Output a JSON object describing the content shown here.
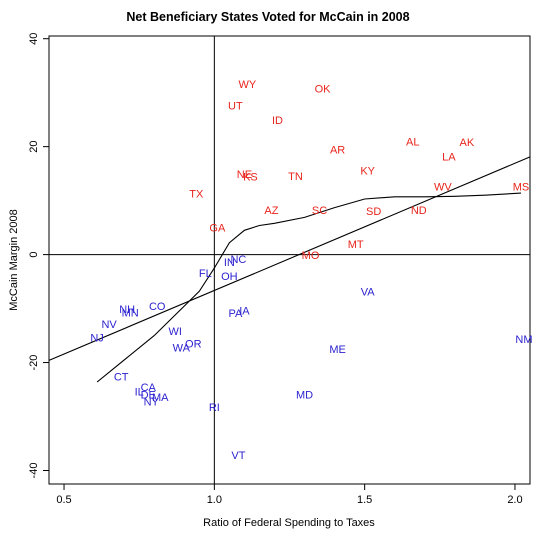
{
  "chart_data": {
    "type": "scatter",
    "title": "Net Beneficiary States Voted for McCain in 2008",
    "xlabel": "Ratio of Federal Spending to Taxes",
    "ylabel": "McCain Margin 2008",
    "xlim": [
      0.45,
      2.05
    ],
    "ylim": [
      -42.5,
      40.5
    ],
    "x_ticks": [
      0.5,
      1.0,
      1.5,
      2.0
    ],
    "x_tick_labels": [
      "0.5",
      "1.0",
      "1.5",
      "2.0"
    ],
    "y_ticks": [
      -40,
      -20,
      0,
      20,
      40
    ],
    "y_tick_labels": [
      "-40",
      "-20",
      "0",
      "20",
      "40"
    ],
    "grid": false,
    "reference_lines": {
      "x": 1.0,
      "y": 0
    },
    "colors": {
      "mccain": "#e8251c",
      "obama": "#2a1fcf"
    },
    "points": [
      {
        "label": "WY",
        "x": 1.11,
        "y": 31.6,
        "winner": "mccain"
      },
      {
        "label": "OK",
        "x": 1.36,
        "y": 30.8,
        "winner": "mccain"
      },
      {
        "label": "UT",
        "x": 1.07,
        "y": 27.6,
        "winner": "mccain"
      },
      {
        "label": "ID",
        "x": 1.21,
        "y": 24.9,
        "winner": "mccain"
      },
      {
        "label": "AL",
        "x": 1.66,
        "y": 21.0,
        "winner": "mccain"
      },
      {
        "label": "AK",
        "x": 1.84,
        "y": 20.9,
        "winner": "mccain"
      },
      {
        "label": "AR",
        "x": 1.41,
        "y": 19.5,
        "winner": "mccain"
      },
      {
        "label": "LA",
        "x": 1.78,
        "y": 18.2,
        "winner": "mccain"
      },
      {
        "label": "KY",
        "x": 1.51,
        "y": 15.6,
        "winner": "mccain"
      },
      {
        "label": "NE",
        "x": 1.1,
        "y": 14.9,
        "winner": "mccain"
      },
      {
        "label": "KS",
        "x": 1.12,
        "y": 14.5,
        "winner": "mccain"
      },
      {
        "label": "TN",
        "x": 1.27,
        "y": 14.6,
        "winner": "mccain"
      },
      {
        "label": "WV",
        "x": 1.76,
        "y": 12.6,
        "winner": "mccain"
      },
      {
        "label": "MS",
        "x": 2.02,
        "y": 12.6,
        "winner": "mccain"
      },
      {
        "label": "TX",
        "x": 0.94,
        "y": 11.3,
        "winner": "mccain"
      },
      {
        "label": "AZ",
        "x": 1.19,
        "y": 8.3,
        "winner": "mccain"
      },
      {
        "label": "SC",
        "x": 1.35,
        "y": 8.3,
        "winner": "mccain"
      },
      {
        "label": "SD",
        "x": 1.53,
        "y": 8.1,
        "winner": "mccain"
      },
      {
        "label": "ND",
        "x": 1.68,
        "y": 8.3,
        "winner": "mccain"
      },
      {
        "label": "GA",
        "x": 1.01,
        "y": 5.0,
        "winner": "mccain"
      },
      {
        "label": "MT",
        "x": 1.47,
        "y": 2.0,
        "winner": "mccain"
      },
      {
        "label": "MO",
        "x": 1.32,
        "y": -0.1,
        "winner": "mccain"
      },
      {
        "label": "IN",
        "x": 1.05,
        "y": -1.4,
        "winner": "obama"
      },
      {
        "label": "NC",
        "x": 1.08,
        "y": -0.8,
        "winner": "obama"
      },
      {
        "label": "FL",
        "x": 0.97,
        "y": -3.4,
        "winner": "obama"
      },
      {
        "label": "OH",
        "x": 1.05,
        "y": -4.0,
        "winner": "obama"
      },
      {
        "label": "VA",
        "x": 1.51,
        "y": -6.8,
        "winner": "obama"
      },
      {
        "label": "CO",
        "x": 0.81,
        "y": -9.5,
        "winner": "obama"
      },
      {
        "label": "NH",
        "x": 0.71,
        "y": -10.1,
        "winner": "obama"
      },
      {
        "label": "MN",
        "x": 0.72,
        "y": -10.7,
        "winner": "obama"
      },
      {
        "label": "IA",
        "x": 1.1,
        "y": -10.4,
        "winner": "obama"
      },
      {
        "label": "PA",
        "x": 1.07,
        "y": -10.8,
        "winner": "obama"
      },
      {
        "label": "NV",
        "x": 0.65,
        "y": -12.9,
        "winner": "obama"
      },
      {
        "label": "NJ",
        "x": 0.61,
        "y": -15.4,
        "winner": "obama"
      },
      {
        "label": "WI",
        "x": 0.87,
        "y": -14.2,
        "winner": "obama"
      },
      {
        "label": "OR",
        "x": 0.93,
        "y": -16.5,
        "winner": "obama"
      },
      {
        "label": "WA",
        "x": 0.89,
        "y": -17.2,
        "winner": "obama"
      },
      {
        "label": "NM",
        "x": 2.03,
        "y": -15.6,
        "winner": "obama"
      },
      {
        "label": "ME",
        "x": 1.41,
        "y": -17.5,
        "winner": "obama"
      },
      {
        "label": "CT",
        "x": 0.69,
        "y": -22.6,
        "winner": "obama"
      },
      {
        "label": "CA",
        "x": 0.78,
        "y": -24.5,
        "winner": "obama"
      },
      {
        "label": "DE",
        "x": 0.78,
        "y": -25.9,
        "winner": "obama"
      },
      {
        "label": "IL",
        "x": 0.75,
        "y": -25.4,
        "winner": "obama"
      },
      {
        "label": "MA",
        "x": 0.82,
        "y": -26.4,
        "winner": "obama"
      },
      {
        "label": "NY",
        "x": 0.79,
        "y": -27.2,
        "winner": "obama"
      },
      {
        "label": "RI",
        "x": 1.0,
        "y": -28.2,
        "winner": "obama"
      },
      {
        "label": "MD",
        "x": 1.3,
        "y": -25.9,
        "winner": "obama"
      },
      {
        "label": "VT",
        "x": 1.08,
        "y": -37.1,
        "winner": "obama"
      }
    ],
    "lines": [
      {
        "kind": "linear-fit",
        "x": [
          0.45,
          2.05
        ],
        "y": [
          -19.6,
          18.1
        ]
      },
      {
        "kind": "loess",
        "x": [
          0.61,
          0.8,
          0.95,
          1.0,
          1.05,
          1.1,
          1.15,
          1.2,
          1.3,
          1.4,
          1.5,
          1.6,
          1.7,
          1.8,
          1.9,
          2.02
        ],
        "y": [
          -23.6,
          -15.0,
          -6.8,
          -2.5,
          2.2,
          4.5,
          5.4,
          5.8,
          6.9,
          8.7,
          10.3,
          10.7,
          10.7,
          10.8,
          11.0,
          11.4
        ]
      }
    ]
  }
}
